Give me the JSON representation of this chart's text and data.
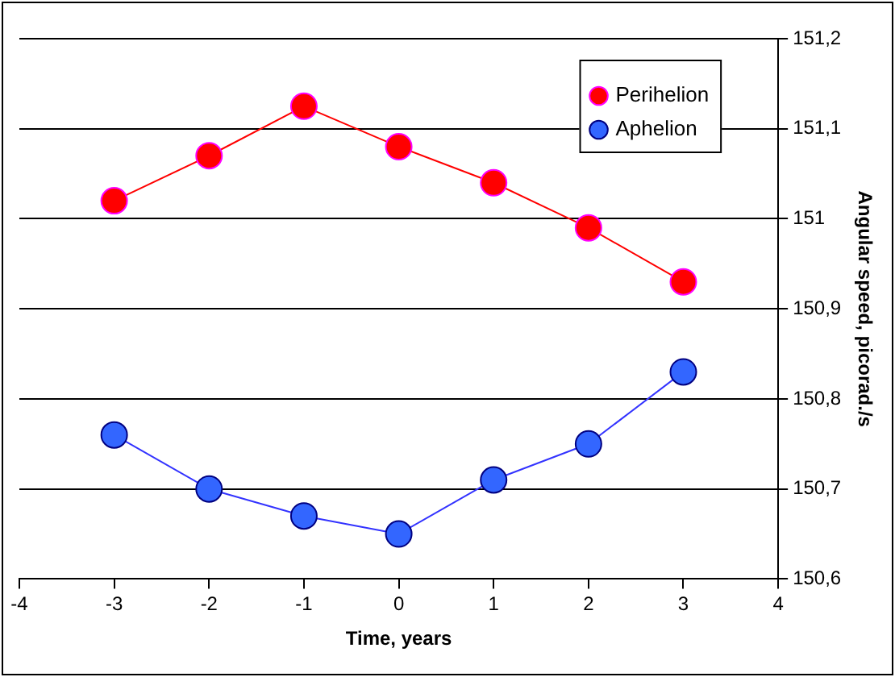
{
  "chart_data": {
    "type": "line",
    "xlabel": "Time, years",
    "ylabel": "Angular speed, picorad./s",
    "x": [
      -3,
      -2,
      -1,
      0,
      1,
      2,
      3
    ],
    "series": [
      {
        "name": "Perihelion",
        "color": "#ff0000",
        "values": [
          151.02,
          151.07,
          151.125,
          151.08,
          151.04,
          150.99,
          150.93
        ]
      },
      {
        "name": "Aphelion",
        "color": "#3366ff",
        "values": [
          150.76,
          150.7,
          150.67,
          150.65,
          150.71,
          150.75,
          150.83
        ]
      }
    ],
    "xlim": [
      -4,
      4
    ],
    "xticks": [
      -4,
      -3,
      -2,
      -1,
      0,
      1,
      2,
      3,
      4
    ],
    "ylim": [
      150.6,
      151.2
    ],
    "yticks": [
      {
        "value": 150.6,
        "label": "150,6"
      },
      {
        "value": 150.7,
        "label": "150,7"
      },
      {
        "value": 150.8,
        "label": "150,8"
      },
      {
        "value": 150.9,
        "label": "150,9"
      },
      151,
      {
        "value": 151.1,
        "label": "151,1"
      },
      {
        "value": 151.2,
        "label": "151,2"
      }
    ],
    "grid": "y",
    "legend": "top right",
    "marker": "circle",
    "line_style": "solid"
  }
}
